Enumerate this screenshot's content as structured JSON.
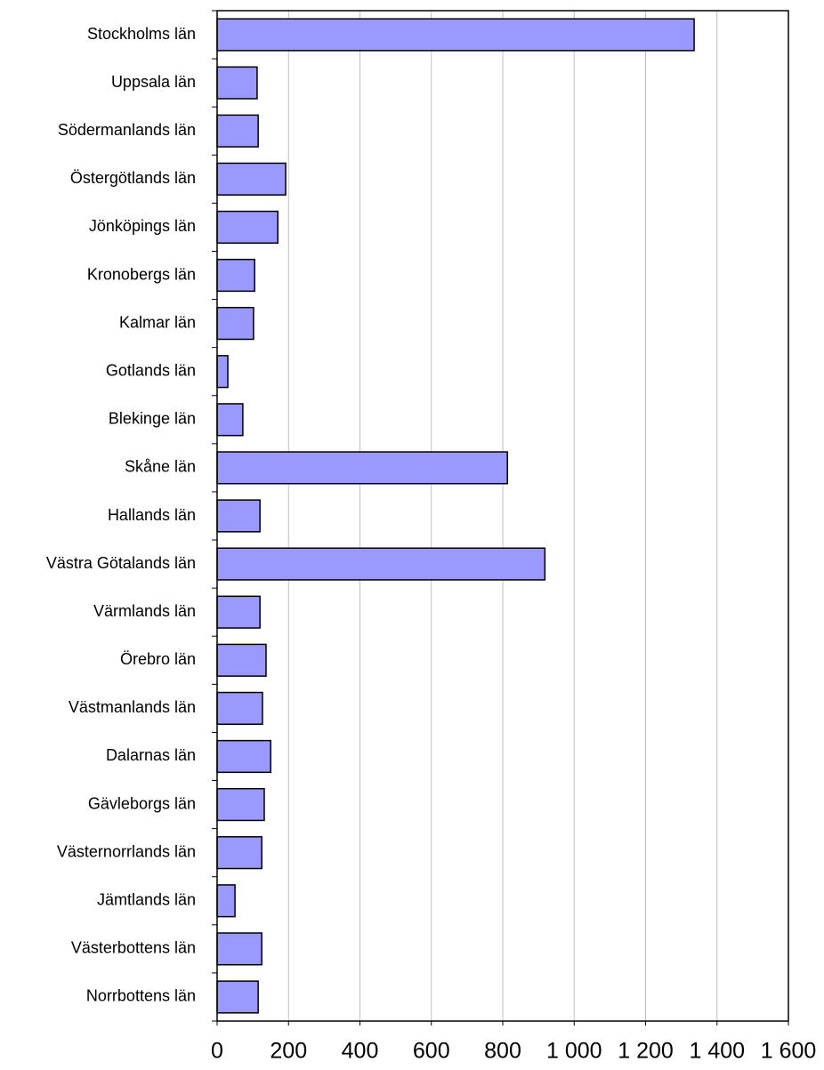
{
  "chart_data": {
    "type": "bar",
    "orientation": "horizontal",
    "categories": [
      "Stockholms län",
      "Uppsala län",
      "Södermanlands län",
      "Östergötlands län",
      "Jönköpings län",
      "Kronobergs län",
      "Kalmar län",
      "Gotlands län",
      "Blekinge län",
      "Skåne län",
      "Hallands län",
      "Västra Götalands län",
      "Värmlands län",
      "Örebro län",
      "Västmanlands län",
      "Dalarnas län",
      "Gävleborgs län",
      "Västernorrlands län",
      "Jämtlands län",
      "Västerbottens län",
      "Norrbottens län"
    ],
    "values": [
      1336,
      112,
      115,
      192,
      170,
      105,
      102,
      30,
      72,
      813,
      120,
      918,
      120,
      137,
      127,
      150,
      132,
      125,
      50,
      125,
      115
    ],
    "color": "#9999ff",
    "xlim": [
      0,
      1600
    ],
    "xticks": [
      0,
      200,
      400,
      600,
      800,
      {
        "value": 1000,
        "label": "1 000"
      },
      {
        "value": 1200,
        "label": "1 200"
      },
      {
        "value": 1400,
        "label": "1 400"
      },
      {
        "value": 1600,
        "label": "1 600"
      }
    ],
    "grid": true
  }
}
